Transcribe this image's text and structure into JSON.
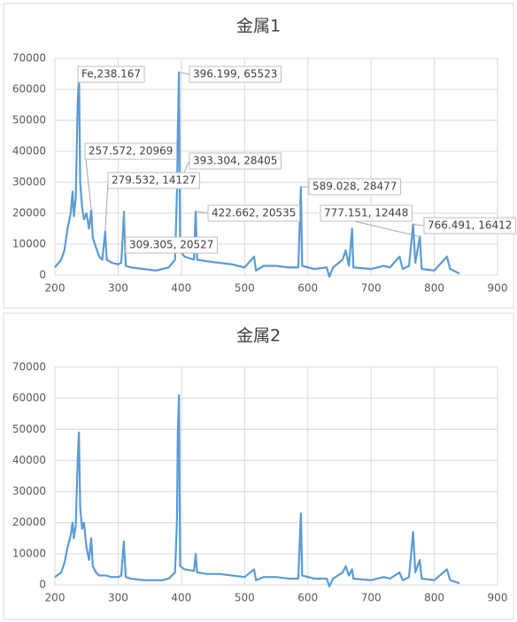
{
  "chart_data": [
    {
      "type": "line",
      "title": "金属1",
      "x": [
        200,
        210,
        215,
        220,
        225,
        228,
        230,
        233,
        236,
        238.167,
        240,
        243,
        246,
        250,
        254,
        257.572,
        260,
        265,
        270,
        275,
        279.532,
        282,
        290,
        300,
        305,
        309.305,
        312,
        320,
        340,
        360,
        370,
        380,
        390,
        393.304,
        394.4,
        396.199,
        398,
        405,
        420,
        422.662,
        425,
        440,
        460,
        480,
        500,
        515,
        518,
        530,
        550,
        570,
        585,
        589.028,
        591,
        610,
        630,
        634,
        640,
        655,
        660,
        665,
        670,
        672,
        700,
        720,
        730,
        745,
        750,
        760,
        766.491,
        770,
        777.151,
        780,
        800,
        820,
        825,
        840
      ],
      "series": [
        {
          "color": "#5b9bd5",
          "values": [
            2500,
            5000,
            8000,
            15000,
            20000,
            27000,
            19000,
            25000,
            55000,
            65000,
            30000,
            22000,
            18000,
            20000,
            15000,
            20969,
            12000,
            9000,
            6000,
            5000,
            14127,
            5000,
            4000,
            3500,
            4000,
            20527,
            3000,
            2500,
            2000,
            1500,
            2000,
            2500,
            5000,
            28405,
            47000,
            65523,
            8000,
            6000,
            5000,
            20535,
            5000,
            4500,
            4000,
            3500,
            2500,
            6000,
            1500,
            3000,
            3000,
            2500,
            2500,
            28477,
            3000,
            2000,
            2500,
            -500,
            2500,
            5000,
            8000,
            3000,
            15000,
            2500,
            2000,
            3000,
            2500,
            6000,
            2000,
            3000,
            16412,
            4000,
            12448,
            2000,
            1500,
            6000,
            2000,
            500
          ]
        }
      ],
      "annotations": [
        {
          "label": "Fe,238.167",
          "x": 238.167,
          "y": 65000
        },
        {
          "label": "396.199, 65523",
          "x": 396.199,
          "y": 65523
        },
        {
          "label": "257.572, 20969",
          "x": 257.572,
          "y": 20969
        },
        {
          "label": "393.304, 28405",
          "x": 393.304,
          "y": 28405
        },
        {
          "label": "279.532, 14127",
          "x": 279.532,
          "y": 14127
        },
        {
          "label": "422.662, 20535",
          "x": 422.662,
          "y": 20535
        },
        {
          "label": "589.028, 28477",
          "x": 589.028,
          "y": 28477
        },
        {
          "label": "777.151, 12448",
          "x": 777.151,
          "y": 12448
        },
        {
          "label": "766.491, 16412",
          "x": 766.491,
          "y": 16412
        },
        {
          "label": "309.305, 20527",
          "x": 309.305,
          "y": 20527
        }
      ],
      "xlim": [
        200,
        900
      ],
      "ylim": [
        0,
        70000
      ],
      "xticks": [
        200,
        300,
        400,
        500,
        600,
        700,
        800,
        900
      ],
      "yticks": [
        0,
        10000,
        20000,
        30000,
        40000,
        50000,
        60000,
        70000
      ],
      "grid": true
    },
    {
      "type": "line",
      "title": "金属2",
      "x": [
        200,
        210,
        215,
        220,
        225,
        228,
        230,
        233,
        236,
        238,
        240,
        243,
        246,
        250,
        254,
        257.5,
        260,
        265,
        270,
        280,
        290,
        300,
        305,
        309,
        312,
        320,
        340,
        360,
        370,
        380,
        390,
        393,
        394.4,
        396.2,
        398,
        405,
        420,
        422.7,
        425,
        440,
        460,
        480,
        500,
        515,
        518,
        530,
        550,
        570,
        585,
        589,
        591,
        610,
        630,
        634,
        640,
        655,
        660,
        665,
        670,
        672,
        700,
        720,
        730,
        745,
        750,
        760,
        766.5,
        770,
        777,
        780,
        800,
        820,
        825,
        840
      ],
      "series": [
        {
          "color": "#5b9bd5",
          "values": [
            2500,
            4000,
            7000,
            12000,
            16000,
            20000,
            15000,
            19000,
            40000,
            49000,
            25000,
            18000,
            20000,
            12000,
            8000,
            15000,
            6000,
            4000,
            3000,
            3000,
            2500,
            2500,
            3000,
            14000,
            2500,
            2000,
            1500,
            1500,
            1500,
            2000,
            4000,
            20000,
            49000,
            61000,
            6000,
            5000,
            4500,
            10000,
            4000,
            3500,
            3500,
            3000,
            2500,
            5000,
            1500,
            2500,
            2500,
            2000,
            2000,
            23000,
            3000,
            2000,
            2000,
            -500,
            2000,
            4000,
            6000,
            3000,
            5000,
            2000,
            1500,
            2500,
            2000,
            4000,
            1500,
            2500,
            17000,
            4000,
            8000,
            2000,
            1500,
            5000,
            1500,
            500
          ]
        }
      ],
      "xlim": [
        200,
        900
      ],
      "ylim": [
        0,
        70000
      ],
      "xticks": [
        200,
        300,
        400,
        500,
        600,
        700,
        800,
        900
      ],
      "yticks": [
        0,
        10000,
        20000,
        30000,
        40000,
        50000,
        60000,
        70000
      ],
      "grid": true
    }
  ]
}
